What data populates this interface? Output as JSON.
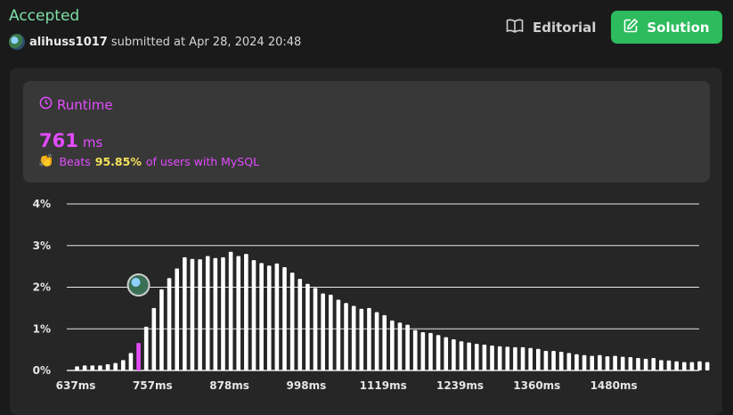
{
  "header": {
    "status": "Accepted",
    "username": "alihuss1017",
    "submitted_text": "submitted at Apr 28, 2024 20:48",
    "editorial_label": "Editorial",
    "solution_label": "Solution"
  },
  "runtime": {
    "label": "Runtime",
    "value": "761",
    "unit": "ms",
    "beats_prefix": "Beats",
    "beats_pct": "95.85%",
    "beats_suffix": "of users with MySQL"
  },
  "colors": {
    "accent_green": "#2cbb5d",
    "status_green": "#7ee0a6",
    "highlight": "#e44cff",
    "beats_yellow": "#f6e35b",
    "bar": "#ffffff"
  },
  "chart_data": {
    "type": "bar",
    "ylim": [
      0,
      4
    ],
    "yticks": [
      "0%",
      "1%",
      "2%",
      "3%",
      "4%"
    ],
    "xticks": [
      "637ms",
      "757ms",
      "878ms",
      "998ms",
      "1119ms",
      "1239ms",
      "1360ms",
      "1480ms"
    ],
    "x_start_ms": 637,
    "x_step_ms": 15,
    "highlight_ms": 761,
    "values": [
      0.1,
      0.12,
      0.12,
      0.12,
      0.15,
      0.18,
      0.25,
      0.42,
      0.66,
      1.05,
      1.5,
      1.95,
      2.22,
      2.45,
      2.72,
      2.68,
      2.67,
      2.75,
      2.7,
      2.72,
      2.85,
      2.75,
      2.8,
      2.65,
      2.58,
      2.52,
      2.57,
      2.48,
      2.35,
      2.2,
      2.08,
      1.98,
      1.85,
      1.82,
      1.7,
      1.62,
      1.55,
      1.48,
      1.5,
      1.4,
      1.33,
      1.2,
      1.15,
      1.1,
      0.97,
      0.92,
      0.9,
      0.85,
      0.8,
      0.75,
      0.7,
      0.67,
      0.64,
      0.62,
      0.6,
      0.58,
      0.57,
      0.56,
      0.56,
      0.54,
      0.52,
      0.47,
      0.47,
      0.45,
      0.42,
      0.39,
      0.37,
      0.35,
      0.37,
      0.34,
      0.35,
      0.33,
      0.32,
      0.3,
      0.28,
      0.3,
      0.25,
      0.24,
      0.22,
      0.2,
      0.2,
      0.22,
      0.2
    ],
    "grid": true
  }
}
